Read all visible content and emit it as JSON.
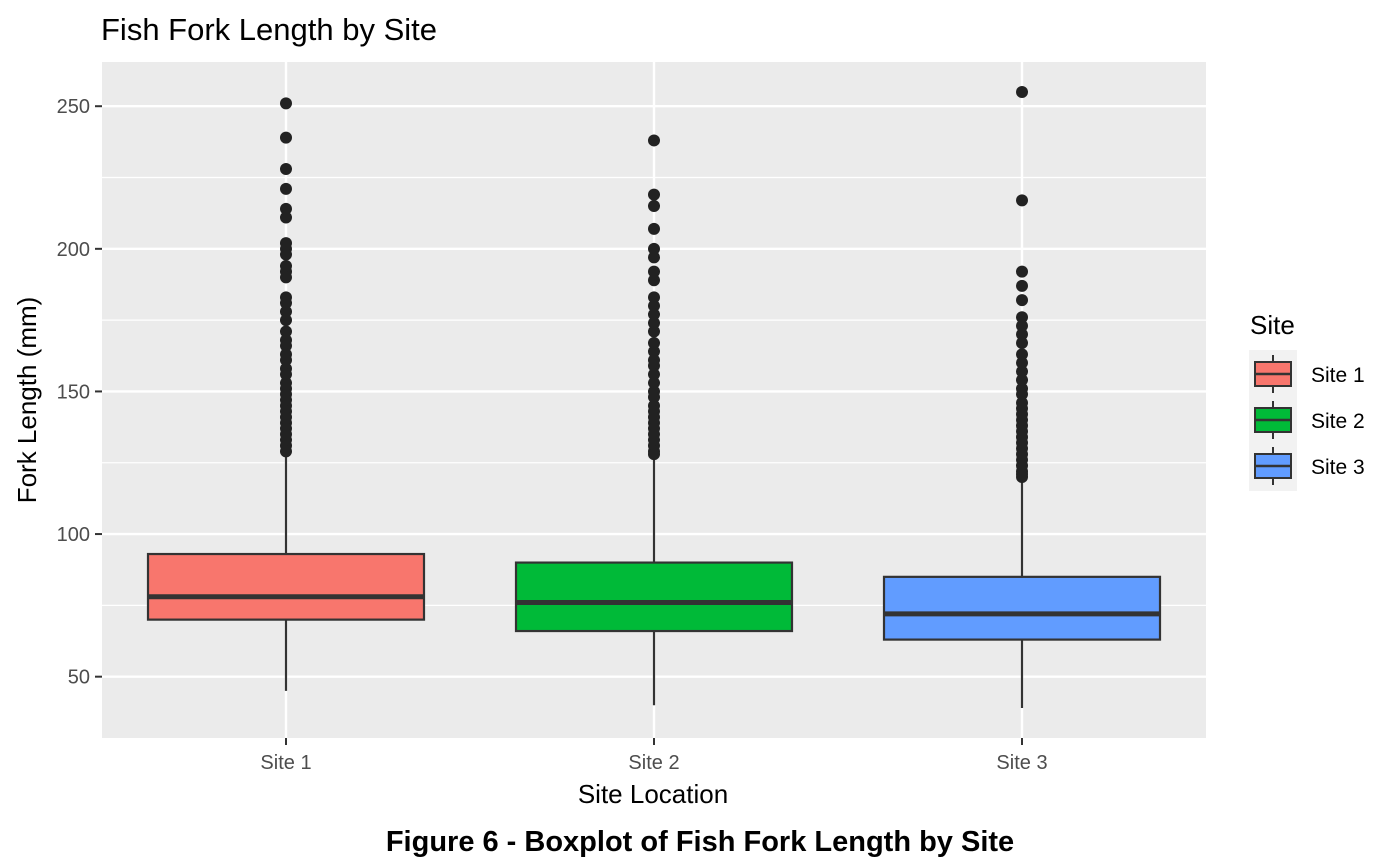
{
  "chart_data": {
    "type": "boxplot",
    "title": "Fish Fork Length by Site",
    "xlabel": "Site Location",
    "ylabel": "Fork Length (mm)",
    "ylim": [
      28.5,
      265.5
    ],
    "yticks": [
      50,
      100,
      150,
      200,
      250
    ],
    "grid": true,
    "legend": {
      "title": "Site",
      "position": "right"
    },
    "categories": [
      "Site 1",
      "Site 2",
      "Site 3"
    ],
    "series": [
      {
        "name": "Site 1",
        "color": "#F8766D",
        "whisker_low": 45,
        "q1": 70,
        "median": 78,
        "q3": 93,
        "whisker_high": 128,
        "outliers": [
          251,
          239,
          228,
          221,
          214,
          211,
          202,
          200,
          198,
          194,
          192,
          190,
          183,
          181,
          178,
          175,
          171,
          168,
          166,
          163,
          161,
          158,
          156,
          153,
          151,
          149,
          147,
          145,
          143,
          141,
          139,
          137,
          135,
          133,
          131,
          129
        ]
      },
      {
        "name": "Site 2",
        "color": "#00BA38",
        "whisker_low": 40,
        "q1": 66,
        "median": 76,
        "q3": 90,
        "whisker_high": 127,
        "outliers": [
          238,
          219,
          215,
          207,
          200,
          197,
          192,
          189,
          183,
          180,
          177,
          174,
          171,
          167,
          164,
          161,
          159,
          156,
          153,
          150,
          148,
          145,
          143,
          141,
          139,
          137,
          135,
          133,
          131,
          129,
          128
        ]
      },
      {
        "name": "Site 3",
        "color": "#619CFF",
        "whisker_low": 39,
        "q1": 63,
        "median": 72,
        "q3": 85,
        "whisker_high": 119,
        "outliers": [
          255,
          217,
          192,
          187,
          182,
          176,
          173,
          170,
          167,
          163,
          160,
          157,
          154,
          151,
          149,
          146,
          144,
          142,
          140,
          138,
          136,
          134,
          132,
          130,
          128,
          126,
          124,
          122,
          121,
          120
        ]
      }
    ]
  },
  "caption": "Figure 6 - Boxplot of Fish Fork Length by Site"
}
